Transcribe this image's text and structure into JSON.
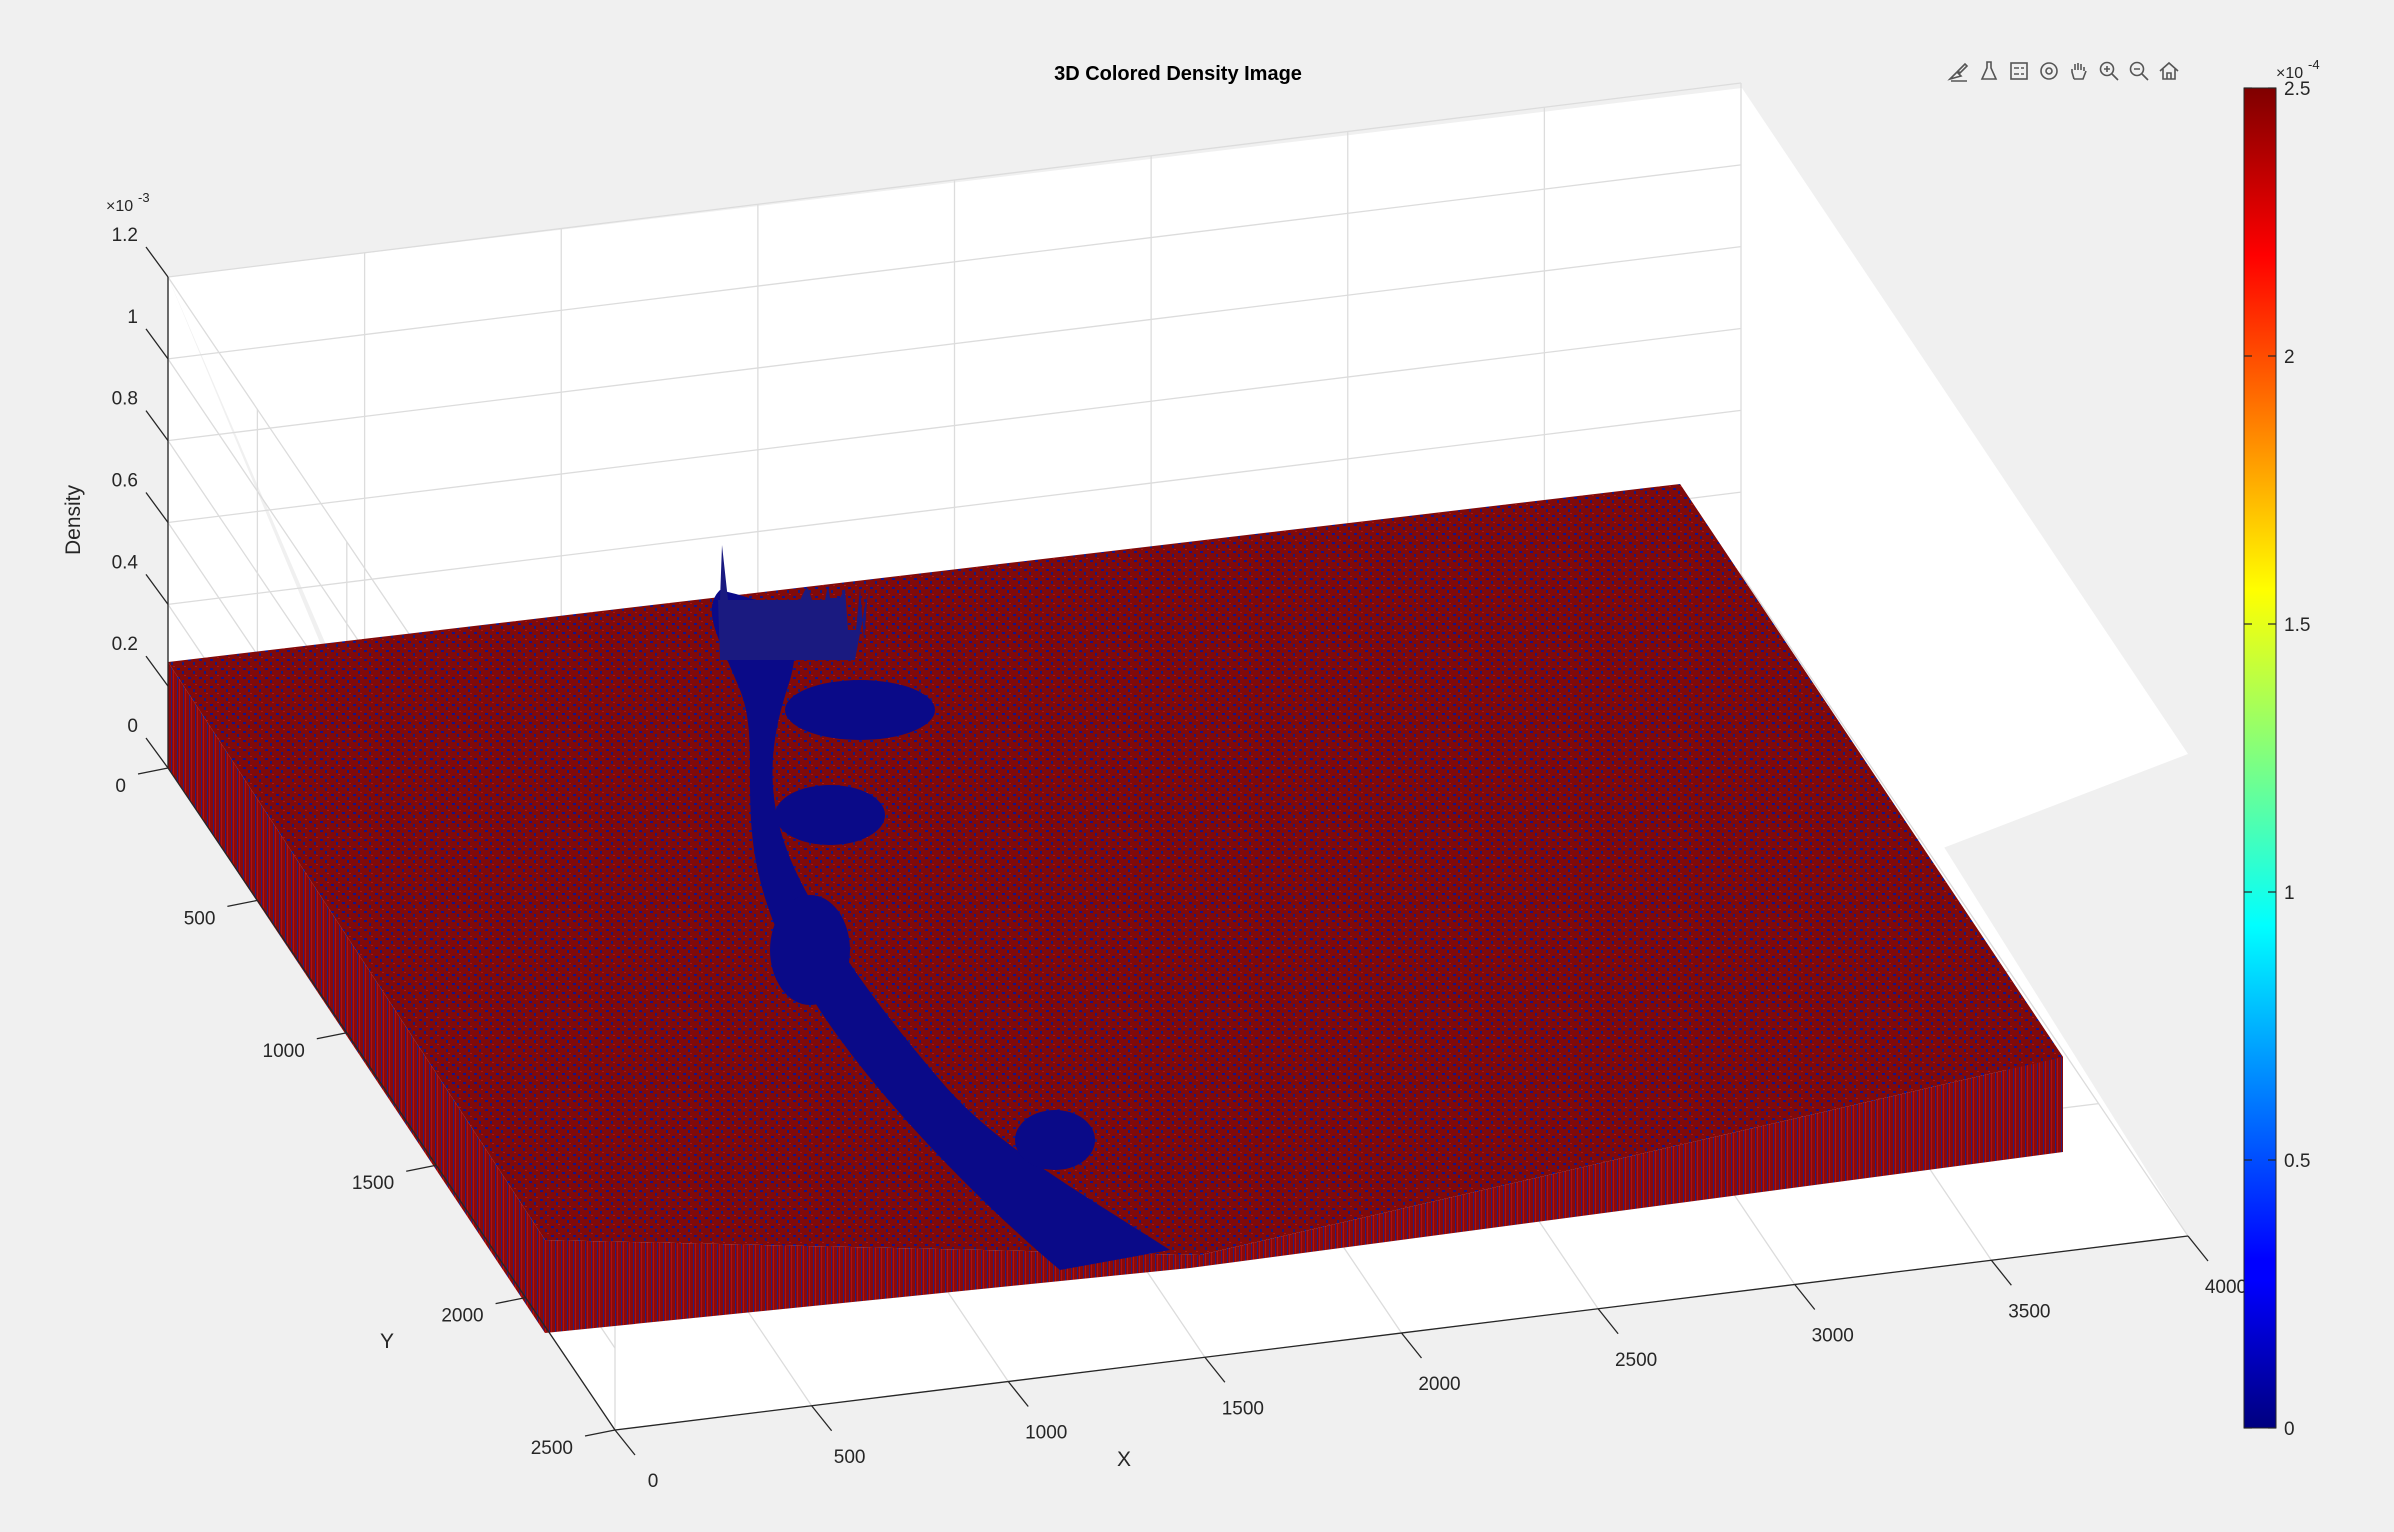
{
  "toolbar": {
    "icons": [
      "brush-icon",
      "data-tips-icon",
      "legend-icon",
      "rotate-3d-icon",
      "pan-hand-icon",
      "zoom-in-icon",
      "zoom-out-icon",
      "home-icon"
    ]
  },
  "chart_data": {
    "type": "surface",
    "title": "3D Colored Density Image",
    "xlabel": "X",
    "ylabel": "Y",
    "zlabel": "Density",
    "xlim": [
      0,
      4000
    ],
    "ylim": [
      0,
      2500
    ],
    "zlim": [
      0,
      0.0012
    ],
    "x_ticks": [
      "0",
      "500",
      "1000",
      "1500",
      "2000",
      "2500",
      "3000",
      "3500",
      "4000"
    ],
    "y_ticks": [
      "0",
      "500",
      "1000",
      "1500",
      "2000",
      "2500"
    ],
    "z_ticks": [
      "0",
      "0.2",
      "0.4",
      "0.6",
      "0.8",
      "1",
      "1.2"
    ],
    "z_exponent": "-3",
    "colormap": "jet",
    "colorbar": {
      "limits": [
        0,
        0.00025
      ],
      "ticks": [
        "0",
        "0.5",
        "1",
        "1.5",
        "2",
        "2.5"
      ],
      "exponent": "-4",
      "location": "right"
    },
    "grid": true,
    "surface_extent": {
      "x": [
        0,
        3600
      ],
      "y": [
        0,
        2200
      ]
    },
    "surface_height_approx": 0.0002,
    "dominant_colors": [
      "#7f0000",
      "#00007f"
    ]
  }
}
